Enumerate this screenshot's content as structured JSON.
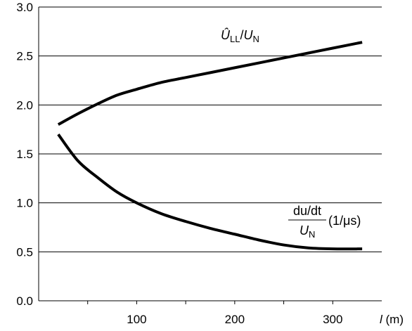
{
  "chart_data": {
    "type": "line",
    "x_axis": {
      "label_var": "l",
      "label_unit": " (m)",
      "range": [
        0,
        350
      ],
      "ticks": [
        50,
        100,
        150,
        200,
        250,
        300
      ],
      "tick_labels": [
        {
          "value": 100,
          "text": "100"
        },
        {
          "value": 200,
          "text": "200"
        },
        {
          "value": 300,
          "text": "300"
        }
      ]
    },
    "y_axis": {
      "range": [
        0.0,
        3.0
      ],
      "ticks": [
        0.0,
        0.5,
        1.0,
        1.5,
        2.0,
        2.5,
        3.0
      ],
      "tick_labels": [
        "0.0",
        "0.5",
        "1.0",
        "1.5",
        "2.0",
        "2.5",
        "3.0"
      ]
    },
    "grid": "horizontal",
    "legend": "none",
    "series": [
      {
        "x": [
          20,
          40,
          60,
          80,
          100,
          125,
          150,
          175,
          200,
          225,
          250,
          275,
          300,
          330
        ],
        "y": [
          1.8,
          1.91,
          2.01,
          2.1,
          2.16,
          2.23,
          2.28,
          2.33,
          2.38,
          2.43,
          2.48,
          2.53,
          2.58,
          2.64
        ]
      },
      {
        "x": [
          20,
          40,
          60,
          80,
          100,
          125,
          150,
          175,
          200,
          225,
          250,
          275,
          300,
          330
        ],
        "y": [
          1.7,
          1.43,
          1.26,
          1.11,
          1.0,
          0.89,
          0.81,
          0.74,
          0.68,
          0.62,
          0.57,
          0.54,
          0.53,
          0.53
        ]
      }
    ],
    "annotations": {
      "upper": {
        "num": "Û",
        "num_sub": "LL",
        "slash": "/",
        "den": "U",
        "den_sub": "N"
      },
      "lower": {
        "numerator": "du/dt",
        "den": "U",
        "den_sub": "N",
        "unit": "(1/μs)"
      }
    }
  }
}
